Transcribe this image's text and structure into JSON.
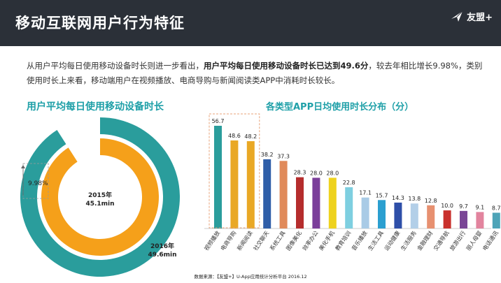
{
  "header": {
    "title": "移动互联网用户行为特征",
    "logo_text": "友盟+"
  },
  "description": {
    "part1": "从用户平均每日使用移动设备时长则进一步看出，",
    "bold": "用户平均每日使用移动设备时长已达到49.6分",
    "part2": "，较去年相比增长9.98%，类别使用时长上来看，移动端用户在视频播放、电商导购与新闻阅读类APP中消耗时长较长。"
  },
  "footer": {
    "source": "数据来源：【友盟+】U-App应用统计分析平台 2016.12"
  },
  "colors": {
    "header_bg": "#2b3038",
    "accent": "#1fa0a8",
    "ring_2016": "#2a9d9c",
    "ring_2015": "#f5a01a"
  },
  "chart_data": [
    {
      "type": "pie",
      "title": "用户平均每日使用移动设备时长",
      "growth_label": "9.98%",
      "rings": [
        {
          "name": "2016年",
          "value_label": "49.6min",
          "value": 49.6
        },
        {
          "name": "2015年",
          "value_label": "45.1min",
          "value": 45.1
        }
      ]
    },
    {
      "type": "bar",
      "title": "各类型APP日均使用时长分布（分）",
      "categories": [
        "视频播放",
        "电商导购",
        "新闻阅读",
        "社交聊天",
        "系统工具",
        "图像美化",
        "效率办公",
        "美化手机",
        "教育培训",
        "音乐播放",
        "生活工具",
        "运动健康",
        "生活服务",
        "金融理财",
        "交通导航",
        "旅游出行",
        "丽人母婴",
        "电话通讯"
      ],
      "values": [
        56.7,
        48.6,
        48.2,
        38.2,
        37.3,
        28.3,
        28.0,
        28.0,
        22.8,
        17.1,
        15.7,
        14.3,
        13.8,
        12.8,
        10.0,
        9.7,
        9.1,
        8.7
      ],
      "value_labels": [
        "56.7",
        "48.6",
        "48.2",
        "38.2",
        "37.3",
        "28.3",
        "28.0",
        "28.0",
        "22.8",
        "17.1",
        "15.7",
        "14.3",
        "13.8",
        "12.8",
        "10.0",
        "9.7",
        "9.1",
        "8.7"
      ],
      "colors": [
        "#2a9d9c",
        "#e9a825",
        "#e9a825",
        "#2f5ea8",
        "#e08a5a",
        "#b52d2d",
        "#7b3f9a",
        "#eed21e",
        "#7ecfe0",
        "#a9cbe6",
        "#2b9fd0",
        "#2e4fa8",
        "#b3cfe8",
        "#e79070",
        "#c9302c",
        "#7a4696",
        "#e2849e",
        "#4ea4b8"
      ],
      "highlight_first": 3,
      "ylim": [
        0,
        60
      ]
    }
  ]
}
